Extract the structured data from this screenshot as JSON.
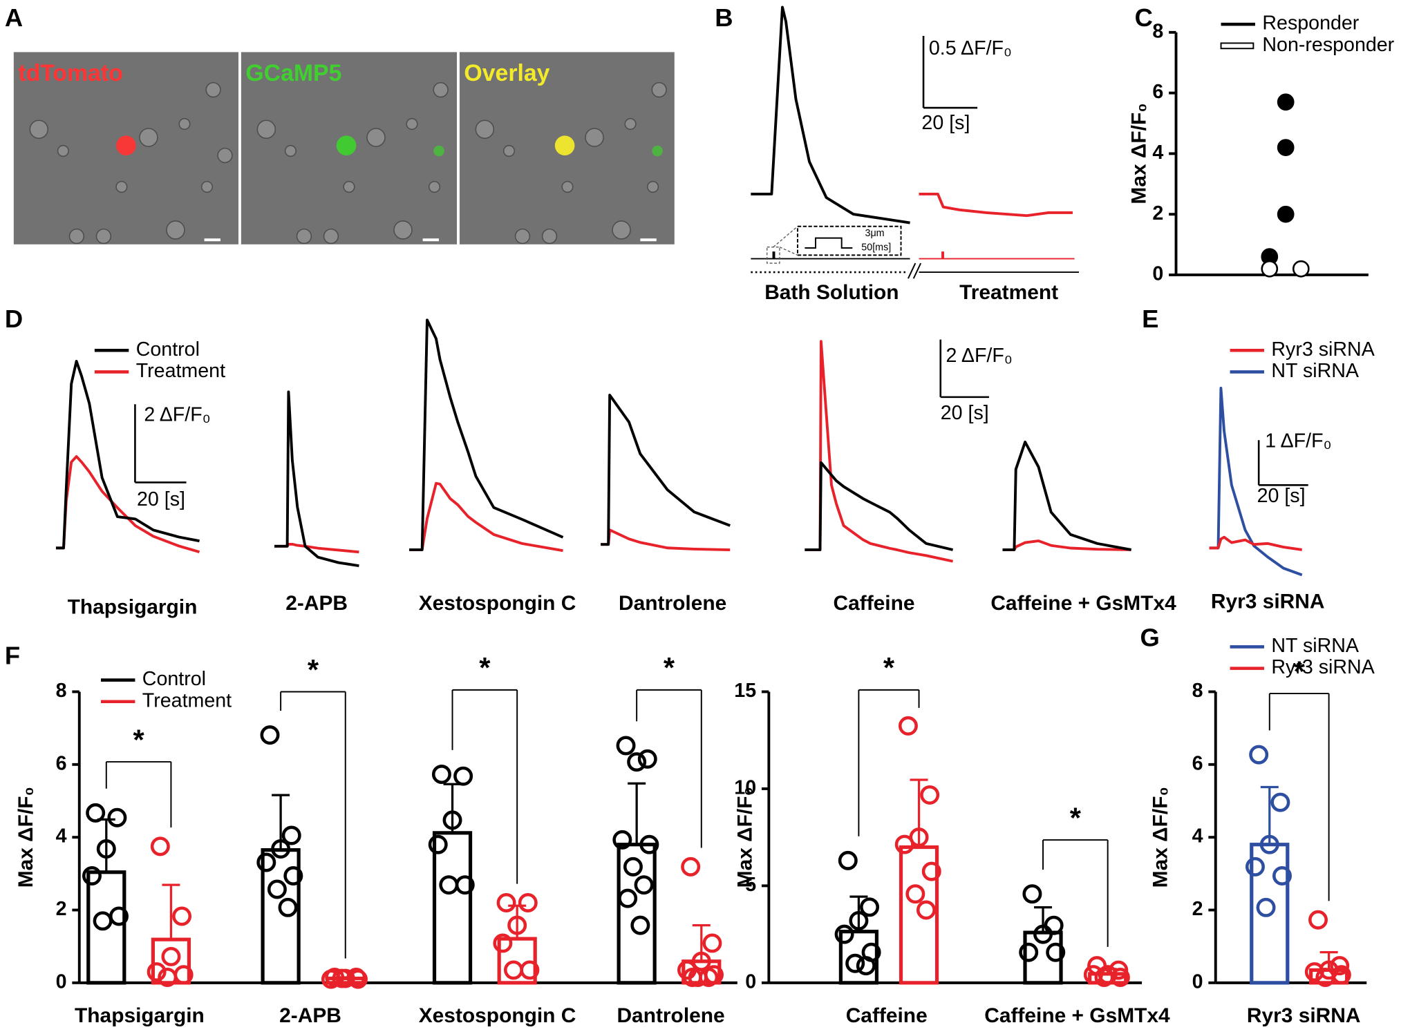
{
  "panel_a": {
    "letter": "A",
    "tiles": [
      {
        "label": "tdTomato",
        "color": "#ff3434"
      },
      {
        "label": "GCaMP5",
        "color": "#3fcf2f"
      },
      {
        "label": "Overlay",
        "color": "#f3ea2c"
      }
    ]
  },
  "chart_data": [
    {
      "type": "trace",
      "panel": "B",
      "scale_bar": {
        "y": 0.5,
        "y_label": "0.5 ΔF/F₀",
        "x": 20,
        "x_label": "20 [s]"
      },
      "stimulus": {
        "amplitude_label": "3μm",
        "duration_label": "50[ms]"
      },
      "groups": [
        {
          "label": "Bath Solution",
          "color": "#000000",
          "x": [
            0,
            7.7,
            11.7,
            13,
            16.7,
            21.7,
            28,
            38,
            59
          ],
          "values": [
            0,
            0,
            1.3,
            1.2,
            0.66,
            0.225,
            -0.025,
            -0.14,
            -0.2
          ]
        },
        {
          "label": "Treatment",
          "color": "#e8222a",
          "x": [
            0,
            7,
            9,
            15,
            25,
            40,
            48,
            57
          ],
          "values": [
            0,
            0,
            -0.09,
            -0.11,
            -0.13,
            -0.15,
            -0.13,
            -0.13
          ]
        }
      ]
    },
    {
      "type": "scatter",
      "panel": "C",
      "ylabel": "Max ΔF/F₀",
      "ylim": [
        0,
        8
      ],
      "yticks": [
        0,
        2,
        4,
        6,
        8
      ],
      "series": [
        {
          "name": "Responder",
          "color": "#000000",
          "marker": "filled",
          "values": [
            5.7,
            4.2,
            2.0,
            0.6
          ]
        },
        {
          "name": "Non-responder",
          "color": "#000000",
          "marker": "open",
          "values": [
            0.2,
            0.2
          ]
        }
      ]
    },
    {
      "type": "trace",
      "panel": "D",
      "series": [
        {
          "name": "Control",
          "color": "#000000"
        },
        {
          "name": "Treatment",
          "color": "#e8222a"
        }
      ],
      "scale_bar": {
        "y": 2,
        "y_label": "2 ΔF/F₀",
        "x": 20,
        "x_label": "20 [s]"
      },
      "groups": [
        {
          "label": "Thapsigargin",
          "x": [
            0,
            3,
            4,
            6,
            8,
            10,
            13,
            18,
            24,
            31,
            38,
            48,
            56
          ],
          "values": [
            [
              0,
              0,
              1.5,
              4.2,
              4.78,
              4.4,
              3.7,
              1.8,
              0.8,
              0.74,
              0.46,
              0.28,
              0.18
            ],
            [
              0,
              0,
              1.2,
              2.2,
              2.34,
              2.2,
              1.95,
              1.45,
              1.03,
              0.57,
              0.3,
              0.05,
              -0.1
            ]
          ]
        },
        {
          "label": "2-APB",
          "x": [
            0,
            5,
            5.5,
            7,
            9,
            12,
            17,
            25,
            33
          ],
          "values": [
            [
              0,
              0,
              3.95,
              2.2,
              1.0,
              0,
              -0.28,
              -0.42,
              -0.5
            ],
            [
              0,
              0,
              0.05,
              0.05,
              0.02,
              0,
              -0.05,
              -0.1,
              -0.15
            ]
          ]
        },
        {
          "label": "Xestospongin C",
          "x": [
            0,
            5,
            7,
            10.5,
            12,
            16,
            19,
            23,
            26,
            33,
            44,
            60
          ],
          "values": [
            [
              0,
              0,
              5.88,
              5.4,
              4.87,
              3.9,
              3.26,
              2.5,
              1.88,
              1.08,
              0.78,
              0.32
            ],
            [
              0,
              0,
              0.8,
              1.7,
              1.68,
              1.31,
              1.15,
              0.85,
              0.7,
              0.39,
              0.16,
              -0.02
            ]
          ]
        },
        {
          "label": "Dantrolene",
          "x": [
            0,
            3,
            3.5,
            11,
            15.4,
            26,
            36.5,
            50.5
          ],
          "values": [
            [
              0,
              0,
              3.82,
              3.13,
              2.32,
              1.4,
              0.83,
              0.48
            ],
            [
              0,
              0,
              0.37,
              0.14,
              0.05,
              -0.09,
              -0.12,
              -0.14
            ]
          ]
        }
      ]
    },
    {
      "type": "trace",
      "series": [
        {
          "color": "#000000"
        },
        {
          "color": "#e8222a"
        }
      ],
      "scale_bar": {
        "y": 2,
        "y_label": "2 ΔF/F₀",
        "x": 20,
        "x_label": "20 [s]"
      },
      "groups": [
        {
          "label": "Caffeine",
          "x": [
            0,
            6.3,
            6.7,
            11,
            13,
            16,
            24,
            27,
            35,
            38,
            43,
            50,
            61
          ],
          "values": [
            [
              0,
              0,
              3.03,
              2.6,
              2.4,
              2.2,
              1.78,
              1.65,
              1.31,
              1.1,
              0.69,
              0.22,
              0
            ],
            [
              0,
              0,
              7.25,
              2.25,
              1.6,
              0.84,
              0.35,
              0.22,
              0.05,
              0,
              -0.1,
              -0.2,
              -0.4
            ]
          ]
        },
        {
          "label": "Caffeine + GsMTx4",
          "x": [
            0,
            4.8,
            5.5,
            9.3,
            14.8,
            20,
            28,
            39,
            53
          ],
          "values": [
            [
              0,
              0,
              2.8,
              3.75,
              2.88,
              1.31,
              0.53,
              0.22,
              0
            ],
            [
              0,
              0,
              0.1,
              0.25,
              0.31,
              0.15,
              0.06,
              0.02,
              0
            ]
          ]
        }
      ]
    },
    {
      "type": "trace",
      "panel": "E",
      "series": [
        {
          "name": "Ryr3 siRNA",
          "color": "#e8222a"
        },
        {
          "name": "NT siRNA",
          "color": "#2e4ea1"
        }
      ],
      "scale_bar": {
        "y": 1,
        "y_label": "1 ΔF/F₀",
        "x": 20,
        "x_label": "20 [s]"
      },
      "groups": [
        {
          "label": "Ryr3 siRNA",
          "x": [
            0,
            3.6,
            4.7,
            6,
            9,
            14.5,
            18,
            23.6,
            30,
            37.5
          ],
          "values": [
            [
              0,
              0,
              0.2,
              0.24,
              0.12,
              0.18,
              0.08,
              0.1,
              0.02,
              -0.04
            ],
            [
              0,
              0,
              3.56,
              2.6,
              1.4,
              0.4,
              0.05,
              -0.2,
              -0.45,
              -0.6
            ]
          ]
        }
      ]
    },
    {
      "type": "bar_points",
      "panel": "F",
      "ylabel": "Max ΔF/F₀",
      "ylim": [
        0,
        8
      ],
      "yticks": [
        0,
        2,
        4,
        6,
        8
      ],
      "series": [
        {
          "name": "Control",
          "color": "#000000"
        },
        {
          "name": "Treatment",
          "color": "#e8222a"
        }
      ],
      "groups": [
        {
          "category": "Thapsigargin",
          "significance": "*",
          "means": [
            3.04,
            1.19
          ],
          "sd": [
            1.45,
            1.5
          ],
          "points": [
            [
              4.67,
              4.54,
              3.68,
              2.94,
              1.83,
              1.7
            ],
            [
              3.75,
              1.83,
              0.72,
              0.3,
              0.22,
              0.15
            ]
          ]
        },
        {
          "category": "2-APB",
          "significance": "*",
          "means": [
            3.65,
            0.12
          ],
          "sd": [
            1.51,
            0.03
          ],
          "points": [
            [
              6.81,
              4.05,
              3.68,
              3.31,
              2.94,
              2.57,
              2.07
            ],
            [
              0.15,
              0.15,
              0.12,
              0.1,
              0.1,
              0.12
            ]
          ]
        },
        {
          "category": "Xestospongin C",
          "significance": "*",
          "means": [
            4.12,
            1.21
          ],
          "sd": [
            1.34,
            0.91
          ],
          "points": [
            [
              5.73,
              5.68,
              4.47,
              3.8,
              2.69,
              2.69
            ],
            [
              2.2,
              2.2,
              1.58,
              1.09,
              0.35,
              0.35
            ]
          ]
        },
        {
          "category": "Dantrolene",
          "significance": "*",
          "means": [
            3.8,
            0.59
          ],
          "sd": [
            1.68,
            0.99
          ],
          "points": [
            [
              6.52,
              6.15,
              6.07,
              3.93,
              3.8,
              3.19,
              2.69,
              2.32,
              1.58
            ],
            [
              3.19,
              1.09,
              0.59,
              0.35,
              0.22,
              0.15,
              0.15,
              0.15
            ]
          ]
        }
      ]
    },
    {
      "type": "bar_points",
      "ylabel": "Max ΔF/F₀",
      "ylim": [
        0,
        15
      ],
      "yticks": [
        0,
        5,
        10,
        15
      ],
      "series": [
        {
          "color": "#000000"
        },
        {
          "color": "#e8222a"
        }
      ],
      "groups": [
        {
          "category": "Caffeine",
          "significance": "*",
          "means": [
            2.64,
            6.99
          ],
          "sd": [
            1.8,
            3.47
          ],
          "points": [
            [
              6.3,
              3.9,
              3.2,
              2.5,
              1.57,
              1.0,
              0.88
            ],
            [
              13.24,
              9.68,
              7.5,
              7.13,
              5.74,
              4.58,
              3.75
            ]
          ]
        },
        {
          "category": "Caffeine + GsMTx4",
          "significance": "*",
          "means": [
            2.59,
            0.46
          ],
          "sd": [
            1.3,
            0.25
          ],
          "points": [
            [
              4.58,
              2.96,
              2.5,
              1.57,
              1.57
            ],
            [
              0.88,
              0.65,
              0.42,
              0.42,
              0.28,
              0.28
            ]
          ]
        }
      ]
    },
    {
      "type": "bar_points",
      "panel": "G",
      "ylabel": "Max ΔF/F₀",
      "ylim": [
        0,
        8
      ],
      "yticks": [
        0,
        2,
        4,
        6,
        8
      ],
      "series": [
        {
          "name": "NT siRNA",
          "color": "#2e4ea1"
        },
        {
          "name": "Ryr3 siRNA",
          "color": "#e8222a"
        }
      ],
      "groups": [
        {
          "category": "Ryr3 siRNA",
          "significance": "*",
          "means": [
            3.8,
            0.35
          ],
          "sd": [
            1.58,
            0.49
          ],
          "points": [
            [
              6.27,
              4.96,
              3.8,
              3.19,
              2.94,
              2.07
            ],
            [
              1.73,
              0.47,
              0.35,
              0.3,
              0.22,
              0.15
            ]
          ]
        }
      ]
    }
  ]
}
